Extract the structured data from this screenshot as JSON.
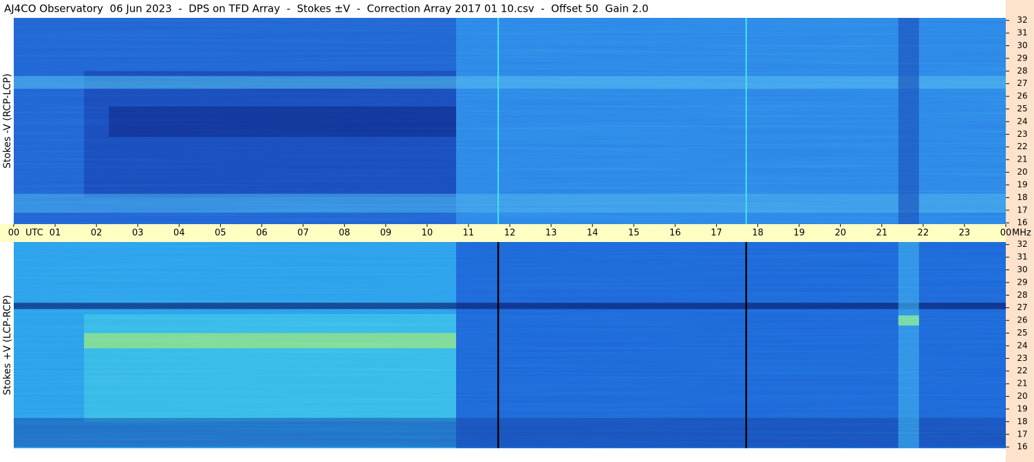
{
  "chart_data": {
    "type": "spectrogram",
    "title": "AJ4CO Observatory  06 Jun 2023  -  DPS on TFD Array  -  Stokes ±V  -  Correction Array 2017 01 10.csv  -  Offset 50  Gain 2.0",
    "xlabel": "UTC",
    "yunit": "MHz",
    "xlim": [
      0,
      24
    ],
    "xticks": [
      {
        "value": 0,
        "label": "00"
      },
      {
        "value": 1,
        "label": "01"
      },
      {
        "value": 2,
        "label": "02"
      },
      {
        "value": 3,
        "label": "03"
      },
      {
        "value": 4,
        "label": "04"
      },
      {
        "value": 5,
        "label": "05"
      },
      {
        "value": 6,
        "label": "06"
      },
      {
        "value": 7,
        "label": "07"
      },
      {
        "value": 8,
        "label": "08"
      },
      {
        "value": 9,
        "label": "09"
      },
      10,
      11,
      12,
      13,
      14,
      15,
      16,
      17,
      18,
      19,
      20,
      21,
      22,
      23,
      {
        "value": 24,
        "label": "00"
      }
    ],
    "panels": [
      {
        "ylabel": "Stokes -V (RCP-LCP)",
        "ylim": [
          15.9,
          32.2
        ],
        "yticks": [
          16,
          17,
          18,
          19,
          20,
          21,
          22,
          23,
          24,
          25,
          26,
          27,
          28,
          29,
          30,
          31,
          32
        ]
      },
      {
        "ylabel": "Stokes +V (LCP-RCP)",
        "ylim": [
          15.9,
          32.2
        ],
        "yticks": [
          16,
          17,
          18,
          19,
          20,
          21,
          22,
          23,
          24,
          25,
          26,
          27,
          28,
          29,
          30,
          31,
          32
        ]
      }
    ]
  }
}
